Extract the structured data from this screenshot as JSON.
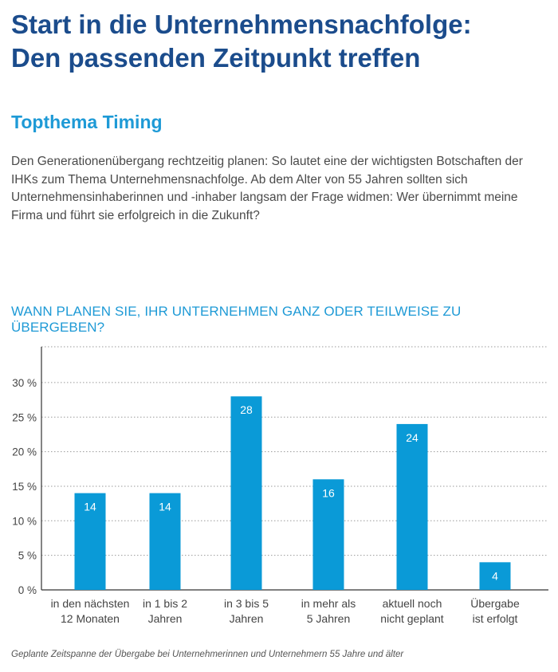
{
  "header": {
    "title_line1": "Start in die Unternehmensnachfolge:",
    "title_line2": "Den passenden Zeitpunkt treffen"
  },
  "section": {
    "subtitle": "Topthema Timing",
    "intro": "Den Generationenübergang rechtzeitig planen: So lautet eine der wichtigsten Botschaften der IHKs zum Thema Unternehmensnachfolge. Ab dem Alter von 55 Jahren sollten sich Unternehmensinhaberinnen und -inhaber langsam der Frage widmen: Wer übernimmt meine Firma und führt sie erfolgreich in die Zukunft?"
  },
  "chart_data": {
    "type": "bar",
    "title": "WANN PLANEN SIE, IHR UNTERNEHMEN GANZ ODER TEILWEISE ZU ÜBERGEBEN?",
    "categories": [
      [
        "in den nächsten",
        "12 Monaten"
      ],
      [
        "in 1 bis 2",
        "Jahren"
      ],
      [
        "in 3 bis 5",
        "Jahren"
      ],
      [
        "in mehr als",
        "5 Jahren"
      ],
      [
        "aktuell noch",
        "nicht geplant"
      ],
      [
        "Übergabe",
        "ist erfolgt"
      ]
    ],
    "values": [
      14,
      14,
      28,
      16,
      24,
      4
    ],
    "yticks": [
      "0 %",
      "5 %",
      "10 %",
      "15 %",
      "20 %",
      "25 %",
      "30 %"
    ],
    "ylim": [
      0,
      35
    ],
    "grid": "dotted horizontal",
    "bar_color": "#0a9ad7",
    "label_color": "#ffffff"
  },
  "footer": {
    "caption": "Geplante Zeitspanne der Übergabe bei Unternehmerinnen und Unternehmern 55 Jahre und älter"
  }
}
